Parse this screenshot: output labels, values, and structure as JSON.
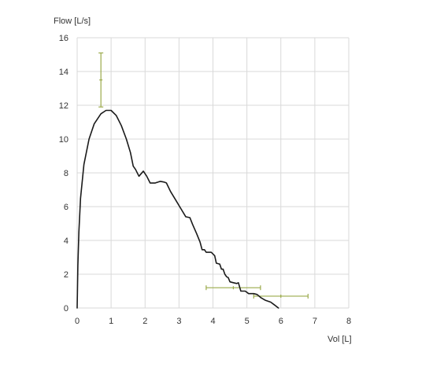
{
  "chart_data": {
    "type": "line",
    "title": "",
    "xlabel": "Vol [L]",
    "ylabel": "Flow [L/s]",
    "xlim": [
      0,
      8
    ],
    "ylim": [
      0,
      16
    ],
    "x_ticks": [
      0,
      1,
      2,
      3,
      4,
      5,
      6,
      7,
      8
    ],
    "y_ticks": [
      0,
      2,
      4,
      6,
      8,
      10,
      12,
      14,
      16
    ],
    "grid": true,
    "colors": {
      "curve": "#1a1a1a",
      "error_bars": "#9aaa4a",
      "grid": "#d9d9d9"
    },
    "series": [
      {
        "points": [
          [
            0.0,
            0.0
          ],
          [
            0.02,
            2.5
          ],
          [
            0.05,
            4.5
          ],
          [
            0.1,
            6.5
          ],
          [
            0.2,
            8.5
          ],
          [
            0.35,
            10.0
          ],
          [
            0.5,
            10.9
          ],
          [
            0.7,
            11.5
          ],
          [
            0.85,
            11.7
          ],
          [
            1.0,
            11.7
          ],
          [
            1.15,
            11.4
          ],
          [
            1.3,
            10.8
          ],
          [
            1.45,
            10.0
          ],
          [
            1.57,
            9.2
          ],
          [
            1.65,
            8.4
          ],
          [
            1.72,
            8.2
          ],
          [
            1.82,
            7.8
          ],
          [
            1.95,
            8.1
          ],
          [
            2.05,
            7.8
          ],
          [
            2.15,
            7.4
          ],
          [
            2.3,
            7.4
          ],
          [
            2.45,
            7.5
          ],
          [
            2.57,
            7.45
          ],
          [
            2.63,
            7.4
          ],
          [
            2.75,
            6.9
          ],
          [
            2.9,
            6.4
          ],
          [
            3.05,
            5.9
          ],
          [
            3.2,
            5.4
          ],
          [
            3.32,
            5.35
          ],
          [
            3.4,
            4.95
          ],
          [
            3.52,
            4.4
          ],
          [
            3.62,
            3.9
          ],
          [
            3.68,
            3.45
          ],
          [
            3.75,
            3.45
          ],
          [
            3.8,
            3.3
          ],
          [
            3.9,
            3.3
          ],
          [
            3.95,
            3.3
          ],
          [
            4.05,
            3.1
          ],
          [
            4.1,
            2.65
          ],
          [
            4.2,
            2.6
          ],
          [
            4.25,
            2.3
          ],
          [
            4.3,
            2.3
          ],
          [
            4.35,
            2.0
          ],
          [
            4.4,
            1.85
          ],
          [
            4.45,
            1.8
          ],
          [
            4.5,
            1.55
          ],
          [
            4.6,
            1.5
          ],
          [
            4.7,
            1.45
          ],
          [
            4.75,
            1.5
          ],
          [
            4.82,
            1.0
          ],
          [
            4.95,
            1.0
          ],
          [
            5.05,
            0.85
          ],
          [
            5.2,
            0.85
          ],
          [
            5.3,
            0.8
          ],
          [
            5.42,
            0.6
          ],
          [
            5.55,
            0.45
          ],
          [
            5.7,
            0.35
          ],
          [
            5.8,
            0.2
          ],
          [
            5.93,
            0.0
          ]
        ]
      }
    ],
    "error_bars": [
      {
        "orientation": "vertical",
        "x": 0.7,
        "y_low": 11.9,
        "y_high": 15.1,
        "marker_y": 13.5
      },
      {
        "orientation": "horizontal",
        "y": 1.2,
        "x_low": 3.8,
        "x_high": 5.4,
        "marker_x": 4.6
      },
      {
        "orientation": "horizontal",
        "y": 0.7,
        "x_low": 5.2,
        "x_high": 6.8,
        "marker_x": 6.0
      }
    ]
  }
}
